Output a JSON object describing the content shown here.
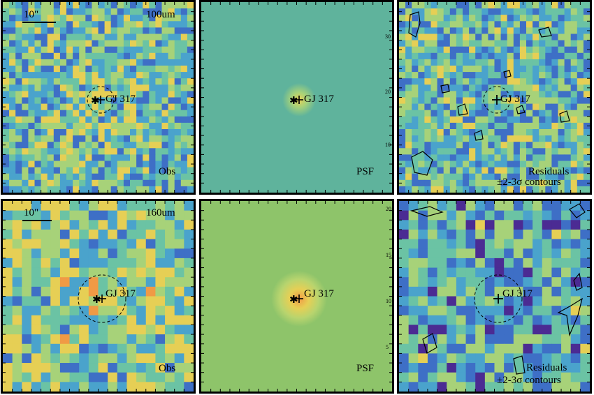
{
  "target_name": "GJ 317",
  "scale_bar_label": "10\"",
  "rows": [
    {
      "band": "100um",
      "panels": [
        {
          "kind": "observed",
          "label": "Obs"
        },
        {
          "kind": "psf",
          "label": "PSF"
        },
        {
          "kind": "residual",
          "label_line1": "Residuals",
          "label_line2": "±2-3σ contours"
        }
      ],
      "axis_ticks": [
        "10",
        "20",
        "30"
      ]
    },
    {
      "band": "160um",
      "panels": [
        {
          "kind": "observed",
          "label": "Obs"
        },
        {
          "kind": "psf",
          "label": "PSF"
        },
        {
          "kind": "residual",
          "label_line1": "Residuals",
          "label_line2": "±2-3σ contours"
        }
      ],
      "axis_ticks": [
        "5",
        "10",
        "15",
        "20"
      ]
    }
  ],
  "colors": {
    "psf_background_100": "#5fb39c",
    "psf_background_160": "#8ec46a",
    "colormap": [
      "#4b2b93",
      "#3e6fc6",
      "#4aa3cc",
      "#6bc3a4",
      "#a7d279",
      "#e6cf55",
      "#f09a45",
      "#e8433a"
    ]
  }
}
